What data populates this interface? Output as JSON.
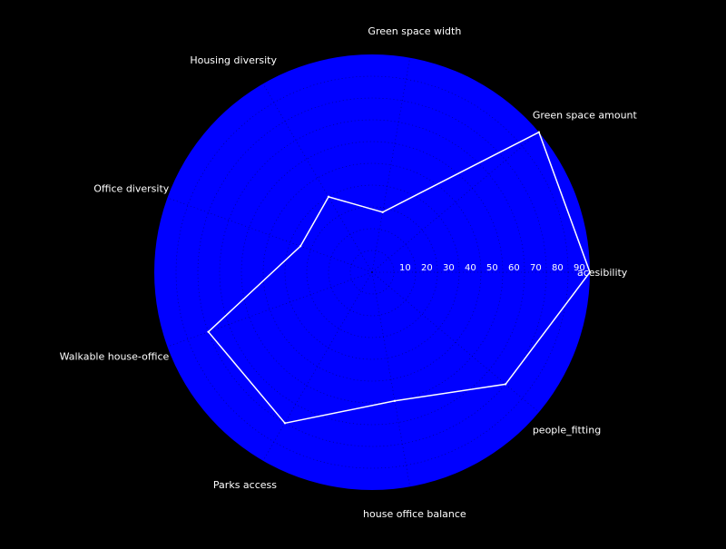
{
  "chart_data": {
    "type": "radar",
    "categories": [
      "acesibility",
      "Green space amount",
      "Green space width",
      "Housing diversity",
      "Office diversity",
      "Walkable house-office",
      "Parks access",
      "house office balance",
      "people_fitting"
    ],
    "values": [
      100,
      100,
      28,
      40,
      35,
      80,
      80,
      60,
      80
    ],
    "r_ticks": [
      10,
      20,
      30,
      40,
      50,
      60,
      70,
      80,
      90
    ],
    "rlim": [
      0,
      100
    ],
    "grid": true,
    "legend": "none",
    "colors": {
      "background": "#000000",
      "polar_face": "#0000ff",
      "series_line": "#ffffff",
      "label_text": "#ffffff",
      "tick_text": "#ffffff",
      "grid": "#000000"
    }
  }
}
